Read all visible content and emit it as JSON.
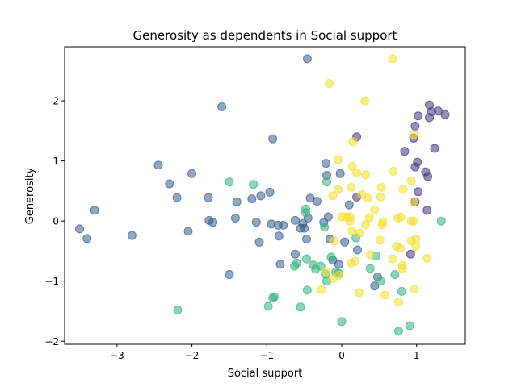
{
  "chart_data": {
    "type": "scatter",
    "title": "Generosity as dependents in Social support",
    "xlabel": "Social support",
    "ylabel": "Generosity",
    "xlim": [
      -3.7,
      1.65
    ],
    "ylim": [
      -2.05,
      2.9
    ],
    "xticks": [
      -3,
      -2,
      -1,
      0,
      1
    ],
    "yticks": [
      -2,
      -1,
      0,
      1,
      2
    ],
    "grid": false,
    "legend": "none",
    "marker_alpha": 0.55,
    "series": [
      {
        "color": "#46337e",
        "points": [
          [
            1.17,
            1.93
          ],
          [
            1.2,
            1.82
          ],
          [
            1.29,
            1.83
          ],
          [
            1.38,
            1.77
          ],
          [
            1.17,
            1.72
          ],
          [
            1.02,
            1.75
          ],
          [
            0.98,
            1.58
          ],
          [
            0.96,
            1.38
          ],
          [
            1.24,
            1.21
          ],
          [
            0.84,
            1.16
          ],
          [
            1.01,
            0.98
          ],
          [
            0.98,
            0.9
          ],
          [
            1.12,
            0.82
          ],
          [
            1.15,
            0.74
          ],
          [
            1.02,
            0.49
          ],
          [
            0.98,
            0.32
          ],
          [
            1.14,
            0.18
          ],
          [
            0.2,
            1.4
          ],
          [
            0.2,
            0.4
          ],
          [
            0.92,
            -0.55
          ]
        ]
      },
      {
        "color": "#365c8d",
        "points": [
          [
            -0.46,
            2.7
          ],
          [
            -1.6,
            1.9
          ],
          [
            -0.92,
            1.37
          ],
          [
            -2.45,
            0.93
          ],
          [
            -2.0,
            0.79
          ],
          [
            -2.3,
            0.62
          ],
          [
            -2.2,
            0.39
          ],
          [
            -1.78,
            0.39
          ],
          [
            -1.4,
            0.32
          ],
          [
            -1.2,
            0.37
          ],
          [
            -1.08,
            0.42
          ],
          [
            -0.96,
            0.48
          ],
          [
            -0.42,
            0.38
          ],
          [
            -0.33,
            0.33
          ],
          [
            -0.2,
            0.76
          ],
          [
            -0.21,
            0.96
          ],
          [
            -0.02,
            0.79
          ],
          [
            0.1,
            0.27
          ],
          [
            -3.3,
            0.18
          ],
          [
            -3.5,
            -0.13
          ],
          [
            -3.4,
            -0.29
          ],
          [
            -2.8,
            -0.24
          ],
          [
            -2.05,
            -0.17
          ],
          [
            -1.77,
            0.01
          ],
          [
            -1.72,
            -0.02
          ],
          [
            -1.42,
            0.05
          ],
          [
            -1.14,
            -0.02
          ],
          [
            -0.94,
            -0.05
          ],
          [
            -0.85,
            -0.07
          ],
          [
            -0.78,
            -0.07
          ],
          [
            -0.62,
            0.01
          ],
          [
            -0.52,
            -0.04
          ],
          [
            -0.45,
            0.05
          ],
          [
            -0.55,
            -0.12
          ],
          [
            -0.5,
            -0.12
          ],
          [
            -0.84,
            -0.25
          ],
          [
            -0.47,
            -0.3
          ],
          [
            -0.24,
            -0.02
          ],
          [
            -0.18,
            0.07
          ],
          [
            -0.16,
            -0.3
          ],
          [
            0.04,
            -0.35
          ],
          [
            0.21,
            -0.48
          ],
          [
            -1.1,
            -0.35
          ],
          [
            -0.82,
            -0.72
          ],
          [
            -0.62,
            -0.55
          ],
          [
            -0.12,
            -0.65
          ],
          [
            -0.04,
            -0.72
          ],
          [
            0.48,
            -0.93
          ],
          [
            0.44,
            -1.08
          ],
          [
            -1.5,
            -0.89
          ]
        ]
      },
      {
        "color": "#2db27d",
        "points": [
          [
            -1.5,
            0.65
          ],
          [
            -1.18,
            0.61
          ],
          [
            -0.48,
            0.2
          ],
          [
            -0.48,
            0.14
          ],
          [
            -0.2,
            0.65
          ],
          [
            -0.23,
            -0.1
          ],
          [
            0.19,
            -0.28
          ],
          [
            -0.14,
            -0.6
          ],
          [
            -0.28,
            -0.75
          ],
          [
            -0.38,
            -0.73
          ],
          [
            -0.35,
            -0.8
          ],
          [
            -0.22,
            -0.88
          ],
          [
            -0.08,
            -0.85
          ],
          [
            -0.04,
            -0.87
          ],
          [
            -0.2,
            -1.0
          ],
          [
            -0.6,
            -0.7
          ],
          [
            -0.63,
            -0.75
          ],
          [
            -0.47,
            -0.63
          ],
          [
            -0.46,
            -1.15
          ],
          [
            0.46,
            -0.58
          ],
          [
            0.38,
            -0.79
          ],
          [
            0.71,
            -0.89
          ],
          [
            0.52,
            -1.0
          ],
          [
            0.8,
            -1.17
          ],
          [
            -0.9,
            -1.26
          ],
          [
            -0.92,
            -1.28
          ],
          [
            -0.98,
            -1.42
          ],
          [
            -0.55,
            -1.43
          ],
          [
            1.33,
            0.0
          ],
          [
            -2.19,
            -1.48
          ],
          [
            0.0,
            -1.67
          ],
          [
            0.91,
            -1.74
          ],
          [
            0.76,
            -1.83
          ]
        ]
      },
      {
        "color": "#f2e02a",
        "points": [
          [
            0.68,
            2.7
          ],
          [
            -0.17,
            2.29
          ],
          [
            0.31,
            2.0
          ],
          [
            0.96,
            1.44
          ],
          [
            0.15,
            1.32
          ],
          [
            -0.05,
            1.02
          ],
          [
            0.14,
            0.91
          ],
          [
            0.69,
            0.83
          ],
          [
            0.2,
            0.8
          ],
          [
            0.32,
            0.77
          ],
          [
            0.93,
            0.67
          ],
          [
            -0.05,
            0.52
          ],
          [
            0.13,
            0.56
          ],
          [
            0.53,
            0.56
          ],
          [
            0.82,
            0.53
          ],
          [
            -0.12,
            0.42
          ],
          [
            0.27,
            0.44
          ],
          [
            0.35,
            0.38
          ],
          [
            0.52,
            0.4
          ],
          [
            0.96,
            0.32
          ],
          [
            0.44,
            0.19
          ],
          [
            0.0,
            0.07
          ],
          [
            0.06,
            0.07
          ],
          [
            0.11,
            0.07
          ],
          [
            0.11,
            0.0
          ],
          [
            0.37,
            0.06
          ],
          [
            0.32,
            -0.06
          ],
          [
            0.55,
            -0.01
          ],
          [
            0.54,
            -0.06
          ],
          [
            0.75,
            0.05
          ],
          [
            0.79,
            0.07
          ],
          [
            0.93,
            0.0
          ],
          [
            0.96,
            0.0
          ],
          [
            0.14,
            -0.16
          ],
          [
            0.24,
            -0.2
          ],
          [
            -0.1,
            -0.33
          ],
          [
            0.51,
            -0.32
          ],
          [
            0.93,
            -0.33
          ],
          [
            0.99,
            -0.3
          ],
          [
            0.73,
            -0.42
          ],
          [
            0.78,
            -0.45
          ],
          [
            0.99,
            -0.42
          ],
          [
            1.14,
            -0.62
          ],
          [
            0.68,
            -0.63
          ],
          [
            0.38,
            -0.56
          ],
          [
            0.13,
            -0.7
          ],
          [
            0.18,
            -0.67
          ],
          [
            0.81,
            -0.74
          ],
          [
            0.81,
            -0.79
          ],
          [
            -0.21,
            -0.84
          ],
          [
            -0.04,
            -0.9
          ],
          [
            -0.12,
            -0.96
          ],
          [
            -0.27,
            -1.14
          ],
          [
            0.58,
            -1.23
          ],
          [
            0.76,
            -1.35
          ],
          [
            0.97,
            -1.13
          ],
          [
            0.23,
            -1.19
          ]
        ]
      }
    ]
  }
}
